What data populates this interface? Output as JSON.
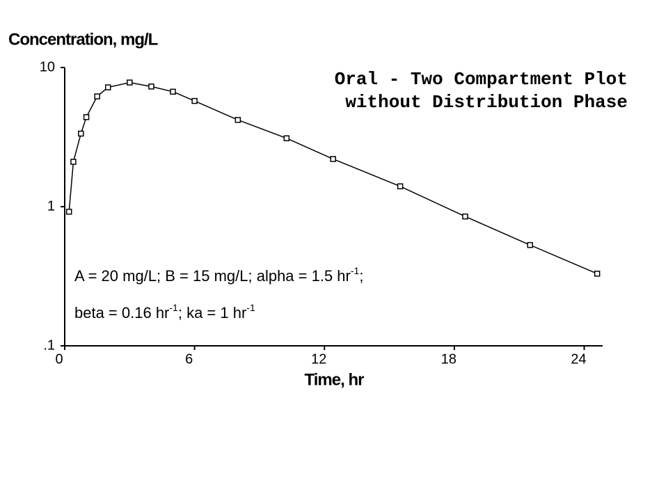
{
  "chart_data": {
    "type": "line",
    "title": [
      "Oral - Two Compartment Plot",
      "without Distribution Phase"
    ],
    "y_label": "Concentration, mg/L",
    "x_label": "Time, hr",
    "annotation": [
      [
        "A = 20 mg/L; B = 15 mg/L; alpha = 1.5 hr",
        "-1",
        ";"
      ],
      [
        "beta = 0.16 hr",
        "-1",
        "; ka = 1 hr",
        "-1"
      ]
    ],
    "x": [
      0.2,
      0.4,
      0.75,
      1,
      1.5,
      2,
      3,
      4,
      5,
      6,
      8,
      10.25,
      12.4,
      15.5,
      18.5,
      21.5,
      24.6
    ],
    "values": [
      0.92,
      2.1,
      3.35,
      4.4,
      6.2,
      7.2,
      7.8,
      7.3,
      6.7,
      5.75,
      4.2,
      3.1,
      2.2,
      1.4,
      0.85,
      0.53,
      0.33
    ],
    "color": "#000000",
    "log_y": true,
    "xlim": [
      0,
      24.85
    ],
    "xticks": [
      0,
      6,
      12,
      18,
      24
    ],
    "ylim": [
      0.1,
      10
    ],
    "yticks": [
      {
        "value": 0.1,
        "label": ".1"
      },
      1,
      10
    ]
  }
}
